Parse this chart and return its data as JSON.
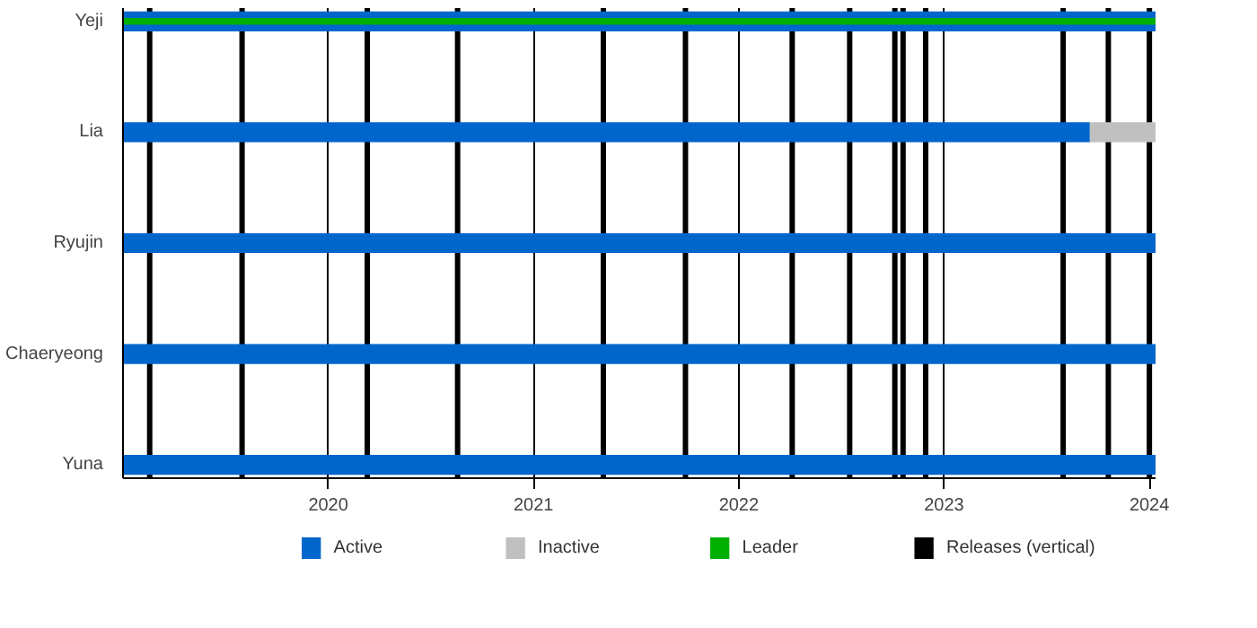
{
  "chart_data": {
    "type": "bar",
    "orientation": "horizontal",
    "categories": [
      "Yeji",
      "Lia",
      "Ryujin",
      "Chaeryeong",
      "Yuna"
    ],
    "series": [
      {
        "name": "Active",
        "color": "#0066cc",
        "base": [
          2019.0,
          2019.0,
          2019.0,
          2019.0,
          2019.0
        ],
        "values": [
          5.03,
          4.71,
          5.03,
          5.03,
          5.03
        ]
      },
      {
        "name": "Inactive",
        "color": "#c0c0c0",
        "base": [
          null,
          2023.71,
          null,
          null,
          null
        ],
        "values": [
          null,
          0.32,
          null,
          null,
          null
        ]
      },
      {
        "name": "Leader",
        "color": "#00b000",
        "base": [
          2019.0,
          null,
          null,
          null,
          null
        ],
        "values": [
          5.03,
          null,
          null,
          null,
          null
        ]
      }
    ],
    "xlim": [
      2019.0,
      2024.03
    ],
    "xticks": [
      2020,
      2021,
      2022,
      2023,
      2024
    ],
    "grid": "x",
    "legend": "bottom",
    "ref_lines": [
      {
        "axis": "x",
        "value": 2019.13,
        "label": "Releases (vertical)",
        "color": "#000000"
      },
      {
        "axis": "x",
        "value": 2019.58,
        "color": "#000000"
      },
      {
        "axis": "x",
        "value": 2020.19,
        "color": "#000000"
      },
      {
        "axis": "x",
        "value": 2020.63,
        "color": "#000000"
      },
      {
        "axis": "x",
        "value": 2021.34,
        "color": "#000000"
      },
      {
        "axis": "x",
        "value": 2021.74,
        "color": "#000000"
      },
      {
        "axis": "x",
        "value": 2022.26,
        "color": "#000000"
      },
      {
        "axis": "x",
        "value": 2022.54,
        "color": "#000000"
      },
      {
        "axis": "x",
        "value": 2022.76,
        "color": "#000000"
      },
      {
        "axis": "x",
        "value": 2022.8,
        "color": "#000000"
      },
      {
        "axis": "x",
        "value": 2022.91,
        "color": "#000000"
      },
      {
        "axis": "x",
        "value": 2023.58,
        "color": "#000000"
      },
      {
        "axis": "x",
        "value": 2023.8,
        "color": "#000000"
      },
      {
        "axis": "x",
        "value": 2024.0,
        "color": "#000000"
      }
    ]
  }
}
